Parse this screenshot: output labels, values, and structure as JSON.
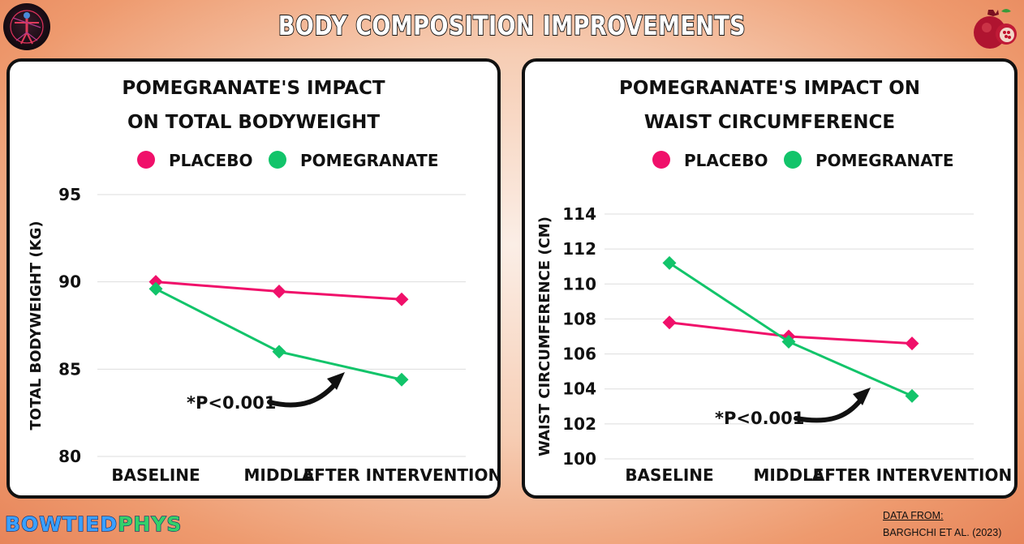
{
  "header": {
    "title": "BODY COMPOSITION IMPROVEMENTS"
  },
  "icons": {
    "left_logo": "anatomy-figure-icon",
    "right_logo": "pomegranate-icon"
  },
  "colors": {
    "placebo": "#f0106a",
    "pomegranate": "#12c46a",
    "grid": "#dddddd"
  },
  "chart_data": [
    {
      "type": "line",
      "title": [
        "POMEGRANATE'S IMPACT",
        "ON TOTAL BODYWEIGHT"
      ],
      "ylabel": "TOTAL BODYWEIGHT (KG)",
      "xlabel": "",
      "categories": [
        "BASELINE",
        "MIDDLE",
        "AFTER INTERVENTION"
      ],
      "ylim": [
        80,
        95
      ],
      "yticks": [
        80,
        85,
        90,
        95
      ],
      "grid": true,
      "legend_position": "top",
      "series": [
        {
          "name": "PLACEBO",
          "values": [
            90.0,
            89.45,
            89.0
          ]
        },
        {
          "name": "POMEGRANATE",
          "values": [
            89.6,
            86.0,
            84.4
          ]
        }
      ],
      "annotation": "*P<0.001"
    },
    {
      "type": "line",
      "title": [
        "POMEGRANATE'S IMPACT ON",
        "WAIST CIRCUMFERENCE"
      ],
      "ylabel": "WAIST CIRCUMFERENCE (CM)",
      "xlabel": "",
      "categories": [
        "BASELINE",
        "MIDDLE",
        "AFTER INTERVENTION"
      ],
      "ylim": [
        100,
        114
      ],
      "yticks": [
        100,
        102,
        104,
        106,
        108,
        110,
        112,
        114
      ],
      "grid": true,
      "legend_position": "top",
      "series": [
        {
          "name": "PLACEBO",
          "values": [
            107.8,
            107.0,
            106.6
          ]
        },
        {
          "name": "POMEGRANATE",
          "values": [
            111.2,
            106.7,
            103.6
          ]
        }
      ],
      "annotation": "*P<0.001"
    }
  ],
  "footer": {
    "brand_part1": "BOWTIED",
    "brand_part2": "PHYS",
    "source_label": "DATA FROM:",
    "source_citation": "BARGHCHI ET AL. (2023)"
  }
}
